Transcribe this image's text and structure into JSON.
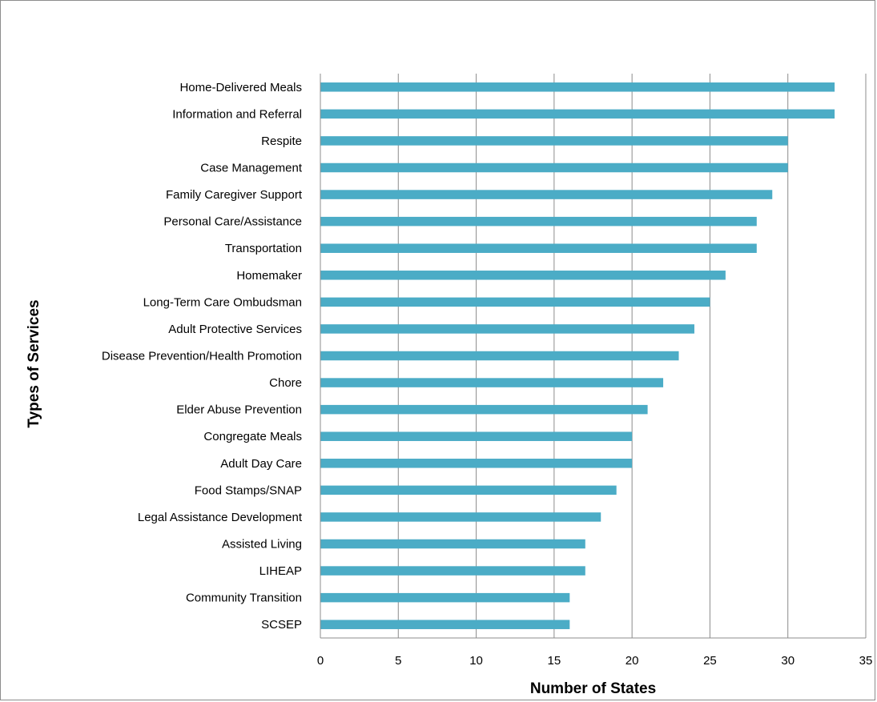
{
  "chart_data": {
    "type": "bar",
    "orientation": "horizontal",
    "title": "",
    "xlabel": "Number of States",
    "ylabel": "Types of Services",
    "xlim": [
      0,
      35
    ],
    "xticks": [
      "0",
      "5",
      "10",
      "15",
      "20",
      "25",
      "30",
      "35"
    ],
    "grid": "vertical",
    "bar_color": "#4bacc6",
    "categories": [
      "Home-Delivered Meals",
      "Information and Referral",
      "Respite",
      "Case Management",
      "Family Caregiver Support",
      "Personal Care/Assistance",
      "Transportation",
      "Homemaker",
      "Long-Term Care Ombudsman",
      "Adult Protective Services",
      "Disease Prevention/Health Promotion",
      "Chore",
      "Elder Abuse Prevention",
      "Congregate Meals",
      "Adult Day Care",
      "Food Stamps/SNAP",
      "Legal Assistance Development",
      "Assisted Living",
      "LIHEAP",
      "Community Transition",
      "SCSEP"
    ],
    "values": [
      33,
      33,
      30,
      30,
      29,
      28,
      28,
      26,
      25,
      24,
      23,
      22,
      21,
      20,
      20,
      19,
      18,
      17,
      17,
      16,
      16
    ]
  }
}
